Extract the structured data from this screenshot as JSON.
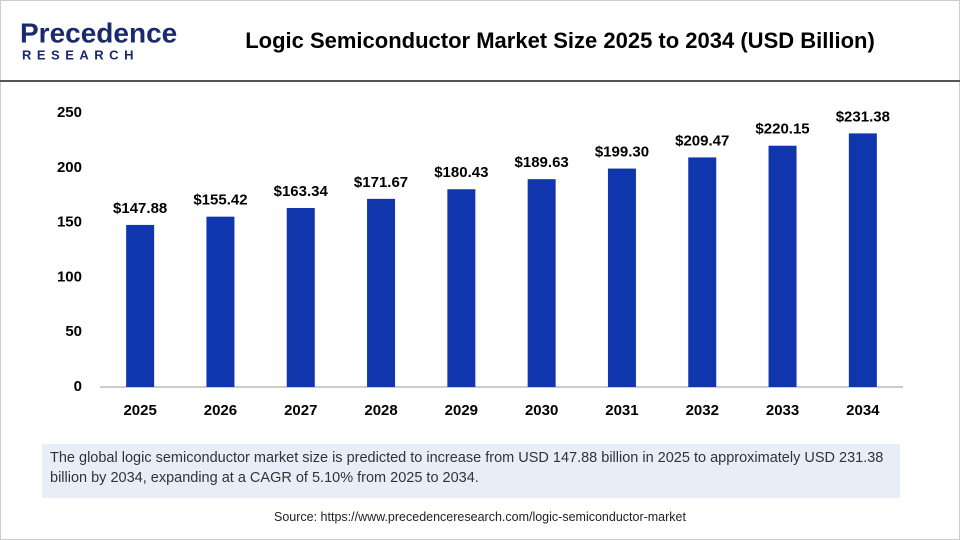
{
  "logo": {
    "name": "Precedence",
    "tagline": "RESEARCH"
  },
  "chart_data": {
    "type": "bar",
    "title": "Logic Semiconductor Market Size 2025 to 2034 (USD Billion)",
    "categories": [
      "2025",
      "2026",
      "2027",
      "2028",
      "2029",
      "2030",
      "2031",
      "2032",
      "2033",
      "2034"
    ],
    "values": [
      147.88,
      155.42,
      163.34,
      171.67,
      180.43,
      189.63,
      199.3,
      209.47,
      220.15,
      231.38
    ],
    "value_labels": [
      "$147.88",
      "$155.42",
      "$163.34",
      "$171.67",
      "$180.43",
      "$189.63",
      "$199.30",
      "$209.47",
      "$220.15",
      "$231.38"
    ],
    "color": "#0f36ad",
    "ylim": [
      0,
      250
    ],
    "yticks": [
      0,
      50,
      100,
      150,
      200,
      250
    ],
    "grid": false
  },
  "description": "The global logic semiconductor market size is predicted to increase from USD 147.88 billion in 2025 to approximately USD 231.38 billion by 2034, expanding at a CAGR of 5.10% from 2025 to 2034.",
  "source": "Source: https://www.precedenceresearch.com/logic-semiconductor-market"
}
